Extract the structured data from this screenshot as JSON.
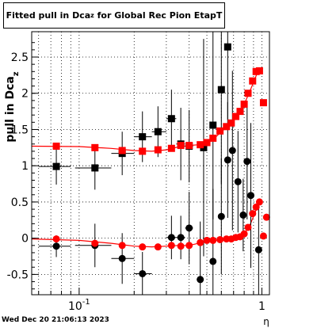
{
  "title": {
    "prefix": "Fitted pull in Dca",
    "sub": "z",
    "suffix": " for Global Rec Pion EtapT"
  },
  "footer": {
    "timestamp": "Wed Dec 20 21:06:13 2023"
  },
  "chart_data": {
    "type": "scatter",
    "title": "Fitted pull in Dca_z for Global Rec Pion EtapT",
    "xlabel": "η",
    "ylabel": "pull in Dca_z",
    "xscale": "log",
    "xlim": [
      0.055,
      1.1
    ],
    "ylim": [
      -0.78,
      2.85
    ],
    "grid": true,
    "xticks": [
      {
        "value": 0.1,
        "base": "10",
        "exp": "-1"
      },
      {
        "value": 1,
        "base": "1",
        "exp": ""
      }
    ],
    "yticks": [
      -0.5,
      0,
      0.5,
      1,
      1.5,
      2,
      2.5
    ],
    "ytick_labels": [
      "-0.5",
      "0",
      "0.5",
      "1",
      "1.5",
      "2",
      "2.5"
    ],
    "colors": {
      "black": "#000000",
      "red": "#ff0000"
    },
    "series": [
      {
        "marker": "square",
        "color": "#000000",
        "points": [
          {
            "x": 0.075,
            "y": 0.99,
            "xerr": [
              0.06,
              0.09
            ],
            "yerr": 0.25
          },
          {
            "x": 0.122,
            "y": 0.97,
            "xerr": [
              0.095,
              0.15
            ],
            "yerr": 0.3
          },
          {
            "x": 0.172,
            "y": 1.17,
            "xerr": [
              0.15,
              0.2
            ],
            "yerr": 0.3
          },
          {
            "x": 0.222,
            "y": 1.4,
            "xerr": [
              0.2,
              0.25
            ],
            "yerr": 0.35
          },
          {
            "x": 0.27,
            "y": 1.47,
            "xerr": [
              0.25,
              0.3
            ],
            "yerr": 0.35
          },
          {
            "x": 0.32,
            "y": 1.65,
            "xerr": [
              0.3,
              0.34
            ],
            "yerr": 0.4
          },
          {
            "x": 0.36,
            "y": 1.3,
            "xerr": [
              0.34,
              0.38
            ],
            "yerr": 0.5
          },
          {
            "x": 0.4,
            "y": 1.27,
            "xerr": [
              0.38,
              0.42
            ],
            "yerr": 0.5
          },
          {
            "x": 0.48,
            "y": 1.25,
            "xerr": [
              0.46,
              0.5
            ],
            "yerr": 1.5
          },
          {
            "x": 0.54,
            "y": 1.56,
            "xerr": [
              0.52,
              0.56
            ],
            "yerr": 1.3
          },
          {
            "x": 0.6,
            "y": 2.05,
            "xerr": [
              0.58,
              0.62
            ],
            "yerr": 1.3
          },
          {
            "x": 0.65,
            "y": 2.64,
            "xerr": [
              0.63,
              0.67
            ],
            "yerr": 1.0
          }
        ]
      },
      {
        "marker": "circle",
        "color": "#000000",
        "points": [
          {
            "x": 0.075,
            "y": -0.11,
            "xerr": [
              0.06,
              0.09
            ],
            "yerr": 0.15
          },
          {
            "x": 0.122,
            "y": -0.1,
            "xerr": [
              0.095,
              0.15
            ],
            "yerr": 0.3
          },
          {
            "x": 0.172,
            "y": -0.28,
            "xerr": [
              0.15,
              0.2
            ],
            "yerr": 0.35
          },
          {
            "x": 0.222,
            "y": -0.49,
            "xerr": [
              0.2,
              0.25
            ],
            "yerr": 0.3
          },
          {
            "x": 0.32,
            "y": 0.01,
            "xerr": [
              0.3,
              0.34
            ],
            "yerr": 0.3
          },
          {
            "x": 0.36,
            "y": 0.01,
            "xerr": [
              0.34,
              0.38
            ],
            "yerr": 0.3
          },
          {
            "x": 0.4,
            "y": 0.14,
            "xerr": [
              0.38,
              0.42
            ],
            "yerr": 0.5
          },
          {
            "x": 0.46,
            "y": -0.57,
            "xerr": [
              0.44,
              0.48
            ],
            "yerr": 0.8
          },
          {
            "x": 0.54,
            "y": -0.32,
            "xerr": [
              0.52,
              0.56
            ],
            "yerr": 1.0
          },
          {
            "x": 0.6,
            "y": 0.3,
            "xerr": [
              0.58,
              0.62
            ],
            "yerr": 0.8
          },
          {
            "x": 0.65,
            "y": 1.08,
            "xerr": [
              0.63,
              0.67
            ],
            "yerr": 0.8
          },
          {
            "x": 0.69,
            "y": 1.21,
            "xerr": [
              0.67,
              0.71
            ],
            "yerr": 1.1
          },
          {
            "x": 0.74,
            "y": 0.78,
            "xerr": [
              0.72,
              0.76
            ],
            "yerr": 0.7
          },
          {
            "x": 0.79,
            "y": 0.32,
            "xerr": [
              0.77,
              0.81
            ],
            "yerr": 0.5
          },
          {
            "x": 0.83,
            "y": 1.06,
            "xerr": [
              0.81,
              0.85
            ],
            "yerr": 0.8
          },
          {
            "x": 0.87,
            "y": 0.59,
            "xerr": [
              0.85,
              0.89
            ],
            "yerr": 1.0
          },
          {
            "x": 0.96,
            "y": -0.16,
            "xerr": [
              0.94,
              0.98
            ],
            "yerr": 0.7
          }
        ]
      },
      {
        "marker": "square",
        "color": "#ff0000",
        "points": [
          {
            "x": 0.075,
            "y": 1.27
          },
          {
            "x": 0.122,
            "y": 1.25
          },
          {
            "x": 0.172,
            "y": 1.21
          },
          {
            "x": 0.222,
            "y": 1.2
          },
          {
            "x": 0.27,
            "y": 1.22
          },
          {
            "x": 0.32,
            "y": 1.24
          },
          {
            "x": 0.36,
            "y": 1.28
          },
          {
            "x": 0.4,
            "y": 1.28
          },
          {
            "x": 0.46,
            "y": 1.29
          },
          {
            "x": 0.5,
            "y": 1.32
          },
          {
            "x": 0.54,
            "y": 1.38
          },
          {
            "x": 0.59,
            "y": 1.48
          },
          {
            "x": 0.64,
            "y": 1.54
          },
          {
            "x": 0.68,
            "y": 1.59
          },
          {
            "x": 0.72,
            "y": 1.68
          },
          {
            "x": 0.76,
            "y": 1.75
          },
          {
            "x": 0.8,
            "y": 1.85
          },
          {
            "x": 0.84,
            "y": 2.0
          },
          {
            "x": 0.89,
            "y": 2.17
          },
          {
            "x": 0.93,
            "y": 2.3
          },
          {
            "x": 0.97,
            "y": 2.31
          },
          {
            "x": 1.02,
            "y": 1.87
          }
        ]
      },
      {
        "marker": "circle",
        "color": "#ff0000",
        "points": [
          {
            "x": 0.075,
            "y": -0.01
          },
          {
            "x": 0.122,
            "y": -0.07
          },
          {
            "x": 0.172,
            "y": -0.1
          },
          {
            "x": 0.222,
            "y": -0.12
          },
          {
            "x": 0.27,
            "y": -0.12
          },
          {
            "x": 0.32,
            "y": -0.1
          },
          {
            "x": 0.36,
            "y": -0.11
          },
          {
            "x": 0.4,
            "y": -0.1
          },
          {
            "x": 0.46,
            "y": -0.06
          },
          {
            "x": 0.5,
            "y": -0.03
          },
          {
            "x": 0.54,
            "y": -0.03
          },
          {
            "x": 0.59,
            "y": -0.02
          },
          {
            "x": 0.64,
            "y": -0.01
          },
          {
            "x": 0.68,
            "y": -0.01
          },
          {
            "x": 0.72,
            "y": 0.01
          },
          {
            "x": 0.76,
            "y": 0.02
          },
          {
            "x": 0.8,
            "y": 0.06
          },
          {
            "x": 0.84,
            "y": 0.15
          },
          {
            "x": 0.89,
            "y": 0.34
          },
          {
            "x": 0.93,
            "y": 0.43
          },
          {
            "x": 0.97,
            "y": 0.5
          },
          {
            "x": 1.02,
            "y": 0.03
          },
          {
            "x": 1.06,
            "y": 0.29
          }
        ]
      }
    ],
    "fit_lines": [
      {
        "color": "#ff0000",
        "points": [
          [
            0.055,
            1.27
          ],
          [
            0.1,
            1.265
          ],
          [
            0.15,
            1.24
          ],
          [
            0.2,
            1.21
          ],
          [
            0.25,
            1.2
          ],
          [
            0.3,
            1.22
          ],
          [
            0.35,
            1.26
          ],
          [
            0.4,
            1.28
          ],
          [
            0.45,
            1.29
          ],
          [
            0.5,
            1.32
          ],
          [
            0.55,
            1.38
          ],
          [
            0.6,
            1.47
          ],
          [
            0.65,
            1.54
          ],
          [
            0.7,
            1.62
          ],
          [
            0.75,
            1.72
          ],
          [
            0.8,
            1.85
          ],
          [
            0.85,
            2.0
          ],
          [
            0.9,
            2.15
          ],
          [
            0.95,
            2.3
          ],
          [
            1.0,
            2.35
          ]
        ]
      },
      {
        "color": "#ff0000",
        "points": [
          [
            0.055,
            -0.01
          ],
          [
            0.1,
            -0.03
          ],
          [
            0.15,
            -0.07
          ],
          [
            0.2,
            -0.11
          ],
          [
            0.25,
            -0.12
          ],
          [
            0.3,
            -0.11
          ],
          [
            0.35,
            -0.1
          ],
          [
            0.4,
            -0.1
          ],
          [
            0.45,
            -0.07
          ],
          [
            0.5,
            -0.04
          ],
          [
            0.55,
            -0.03
          ],
          [
            0.6,
            -0.02
          ],
          [
            0.65,
            -0.01
          ],
          [
            0.7,
            0.0
          ],
          [
            0.75,
            0.02
          ],
          [
            0.8,
            0.06
          ],
          [
            0.85,
            0.15
          ],
          [
            0.9,
            0.3
          ],
          [
            0.95,
            0.45
          ],
          [
            1.0,
            0.52
          ]
        ]
      }
    ]
  }
}
